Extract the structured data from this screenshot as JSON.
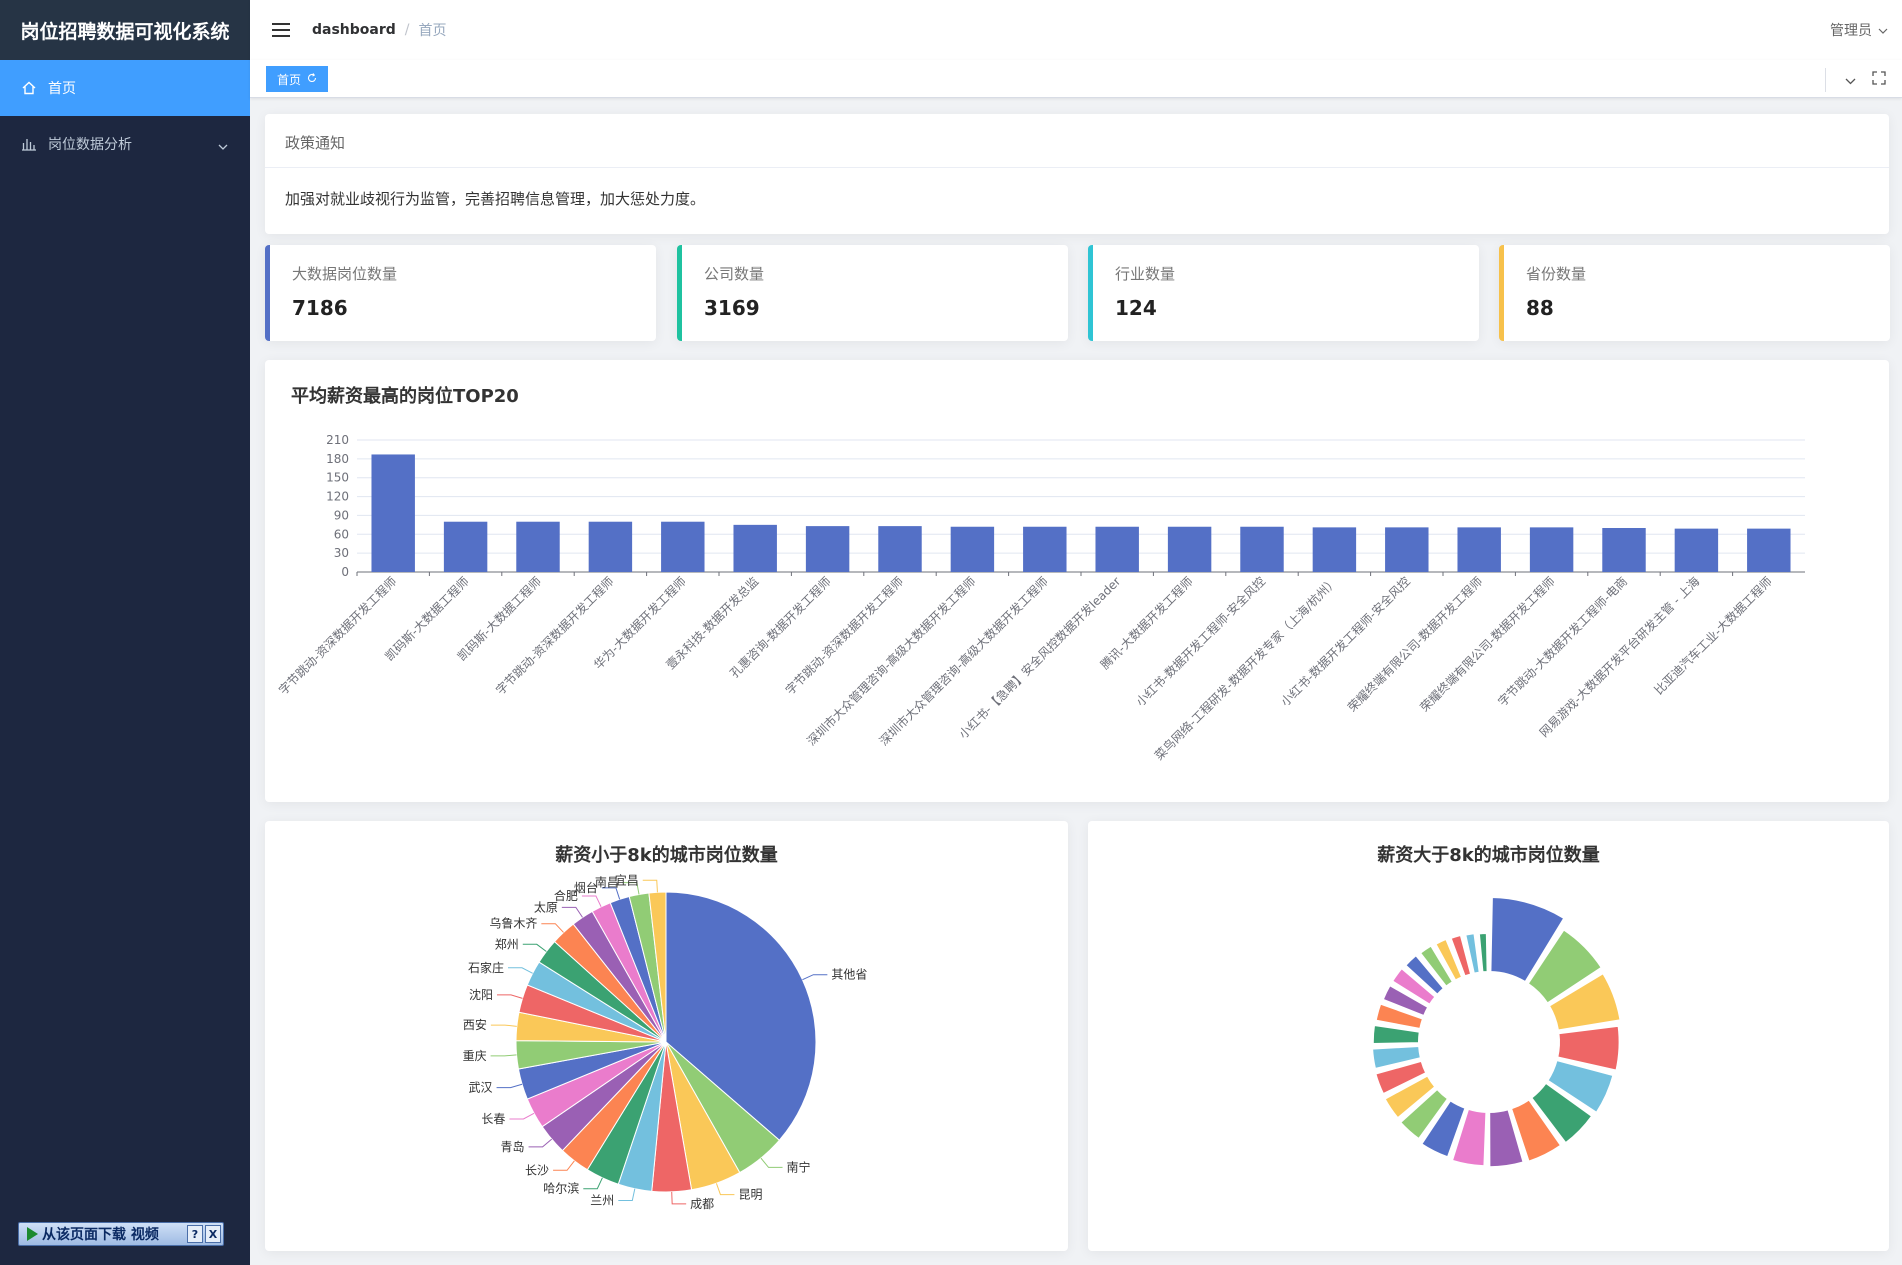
{
  "app": {
    "title": "岗位招聘数据可视化系统"
  },
  "sidebar": {
    "items": [
      {
        "label": "首页",
        "icon": "home-icon",
        "active": true
      },
      {
        "label": "岗位数据分析",
        "icon": "bar-chart-icon",
        "active": false
      }
    ],
    "download_bar": {
      "label": "从该页面下载 视频",
      "help": "?",
      "close": "X"
    }
  },
  "header": {
    "breadcrumb": {
      "root": "dashboard",
      "separator": "/",
      "current": "首页"
    },
    "user": "管理员"
  },
  "tagsview": {
    "tag": "首页"
  },
  "notice": {
    "title": "政策通知",
    "content": "加强对就业歧视行为监管，完善招聘信息管理，加大惩处力度。"
  },
  "stats": [
    {
      "label": "大数据岗位数量",
      "value": "7186",
      "color": "#5470c6"
    },
    {
      "label": "公司数量",
      "value": "3169",
      "color": "#1fc2a0"
    },
    {
      "label": "行业数量",
      "value": "124",
      "color": "#2fc4d4"
    },
    {
      "label": "省份数量",
      "value": "88",
      "color": "#f7c14b"
    }
  ],
  "chart_data": [
    {
      "type": "bar",
      "title": "平均薪资最高的岗位TOP20",
      "color": "#5470c6",
      "ylim": [
        0,
        210
      ],
      "yticks": [
        0,
        30,
        60,
        90,
        120,
        150,
        180,
        210
      ],
      "grid": true,
      "categories": [
        "字节跳动-资深数据开发工程师",
        "凯码斯-大数据工程师",
        "凯码斯-大数据工程师",
        "字节跳动-资深数据开发工程师",
        "华为-大数据开发工程师",
        "壹永科技-数据开发总监",
        "孔惠咨询-数据开发工程师",
        "字节跳动-资深数据开发工程师",
        "深圳市大众管理咨询-高级大数据开发工程师",
        "深圳市大众管理咨询-高级大数据开发工程师",
        "小红书-【急聘】安全风控数据开发leader",
        "腾讯-大数据开发工程师",
        "小红书-数据开发工程师-安全风控",
        "菜鸟网络-工程研发-数据开发专家（上海/杭州）",
        "小红书-数据开发工程师-安全风控",
        "荣耀终端有限公司-数据开发工程师",
        "荣耀终端有限公司-数据开发工程师",
        "字节跳动-大数据开发工程师-电商",
        "网易游戏-大数据开发平台研发主管 - 上海",
        "比亚迪汽车工业-大数据工程师"
      ],
      "values": [
        187,
        80,
        80,
        80,
        80,
        75,
        73,
        73,
        72,
        72,
        72,
        72,
        72,
        71,
        71,
        71,
        71,
        70,
        69,
        69
      ]
    },
    {
      "type": "pie",
      "title": "薪资小于8k的城市岗位数量",
      "categories": [
        "其他省",
        "南宁",
        "昆明",
        "成都",
        "兰州",
        "哈尔滨",
        "长沙",
        "青岛",
        "长春",
        "武汉",
        "重庆",
        "西安",
        "沈阳",
        "石家庄",
        "郑州",
        "乌鲁木齐",
        "太原",
        "合肥",
        "烟台",
        "南昌",
        "宜昌"
      ],
      "values": [
        120,
        18,
        18,
        14,
        12,
        12,
        11,
        11,
        11,
        11,
        10,
        10,
        10,
        9,
        9,
        9,
        8,
        7,
        7,
        7,
        6
      ],
      "colors": [
        "#5470c6",
        "#91cc75",
        "#fac858",
        "#ee6666",
        "#73c0de",
        "#3ba272",
        "#fc8452",
        "#9a60b4",
        "#ea7ccc"
      ]
    },
    {
      "type": "pie",
      "title": "薪资大于8k的城市岗位数量",
      "donut": true,
      "rose": true,
      "values": [
        100,
        78,
        74,
        68,
        64,
        60,
        58,
        56,
        54,
        50,
        44,
        42,
        40,
        38,
        36,
        34,
        32,
        32,
        30,
        28,
        26,
        24,
        22,
        20
      ],
      "colors": [
        "#5470c6",
        "#91cc75",
        "#fac858",
        "#ee6666",
        "#73c0de",
        "#3ba272",
        "#fc8452",
        "#9a60b4",
        "#ea7ccc"
      ]
    }
  ]
}
